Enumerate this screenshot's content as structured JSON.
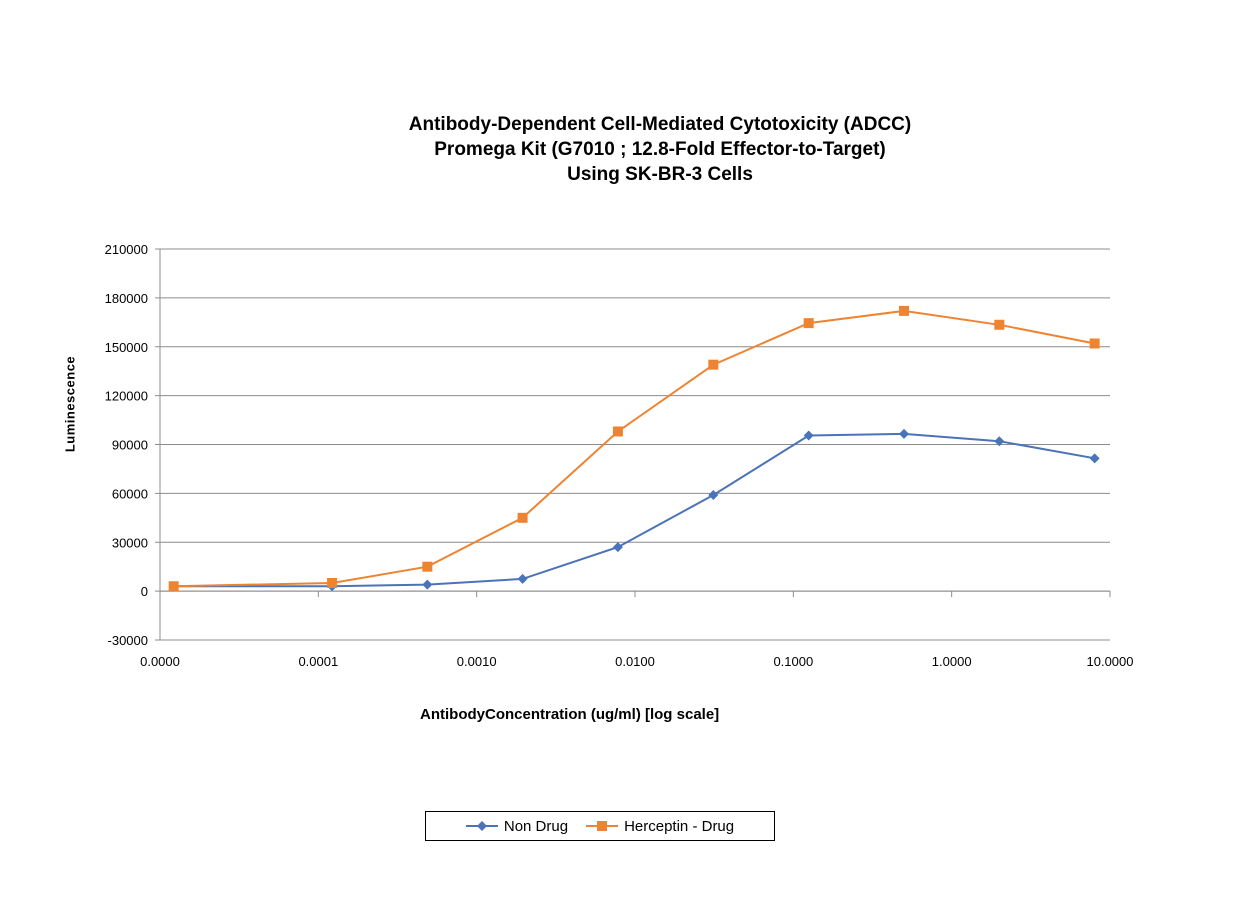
{
  "chart_data": {
    "type": "line",
    "title_lines": [
      "Antibody-Dependent Cell-Mediated Cytotoxicity (ADCC)",
      "Promega Kit (G7010 ; 12.8-Fold Effector-to-Target)",
      "Using SK-BR-3 Cells"
    ],
    "xlabel": "AntibodyConcentration (ug/ml)  [log scale]",
    "ylabel": "Luminescence",
    "x_scale": "log",
    "x_tick_labels": [
      "0.0000",
      "0.0001",
      "0.0010",
      "0.0100",
      "0.1000",
      "1.0000",
      "10.0000"
    ],
    "x_tick_values": [
      1e-05,
      0.0001,
      0.001,
      0.01,
      0.1,
      1,
      10
    ],
    "y_tick_labels": [
      "-30000",
      "0",
      "30000",
      "60000",
      "90000",
      "120000",
      "150000",
      "180000",
      "210000"
    ],
    "ylim": [
      -30000,
      210000
    ],
    "xlim": [
      1e-05,
      10
    ],
    "grid": "horizontal",
    "x": [
      1.22e-05,
      0.0001221,
      0.000488,
      0.00195,
      0.0078,
      0.03125,
      0.125,
      0.5,
      2,
      8
    ],
    "series": [
      {
        "name": "Non Drug",
        "color": "#4a73b8",
        "marker": "diamond",
        "values": [
          3000,
          3000,
          4000,
          7500,
          27000,
          59000,
          95500,
          96500,
          92000,
          81500
        ]
      },
      {
        "name": "Herceptin - Drug",
        "color": "#ee8432",
        "marker": "square",
        "values": [
          3000,
          5000,
          15000,
          45000,
          98000,
          139000,
          164500,
          172000,
          163500,
          152000
        ]
      }
    ],
    "legend_position": "bottom-center"
  }
}
